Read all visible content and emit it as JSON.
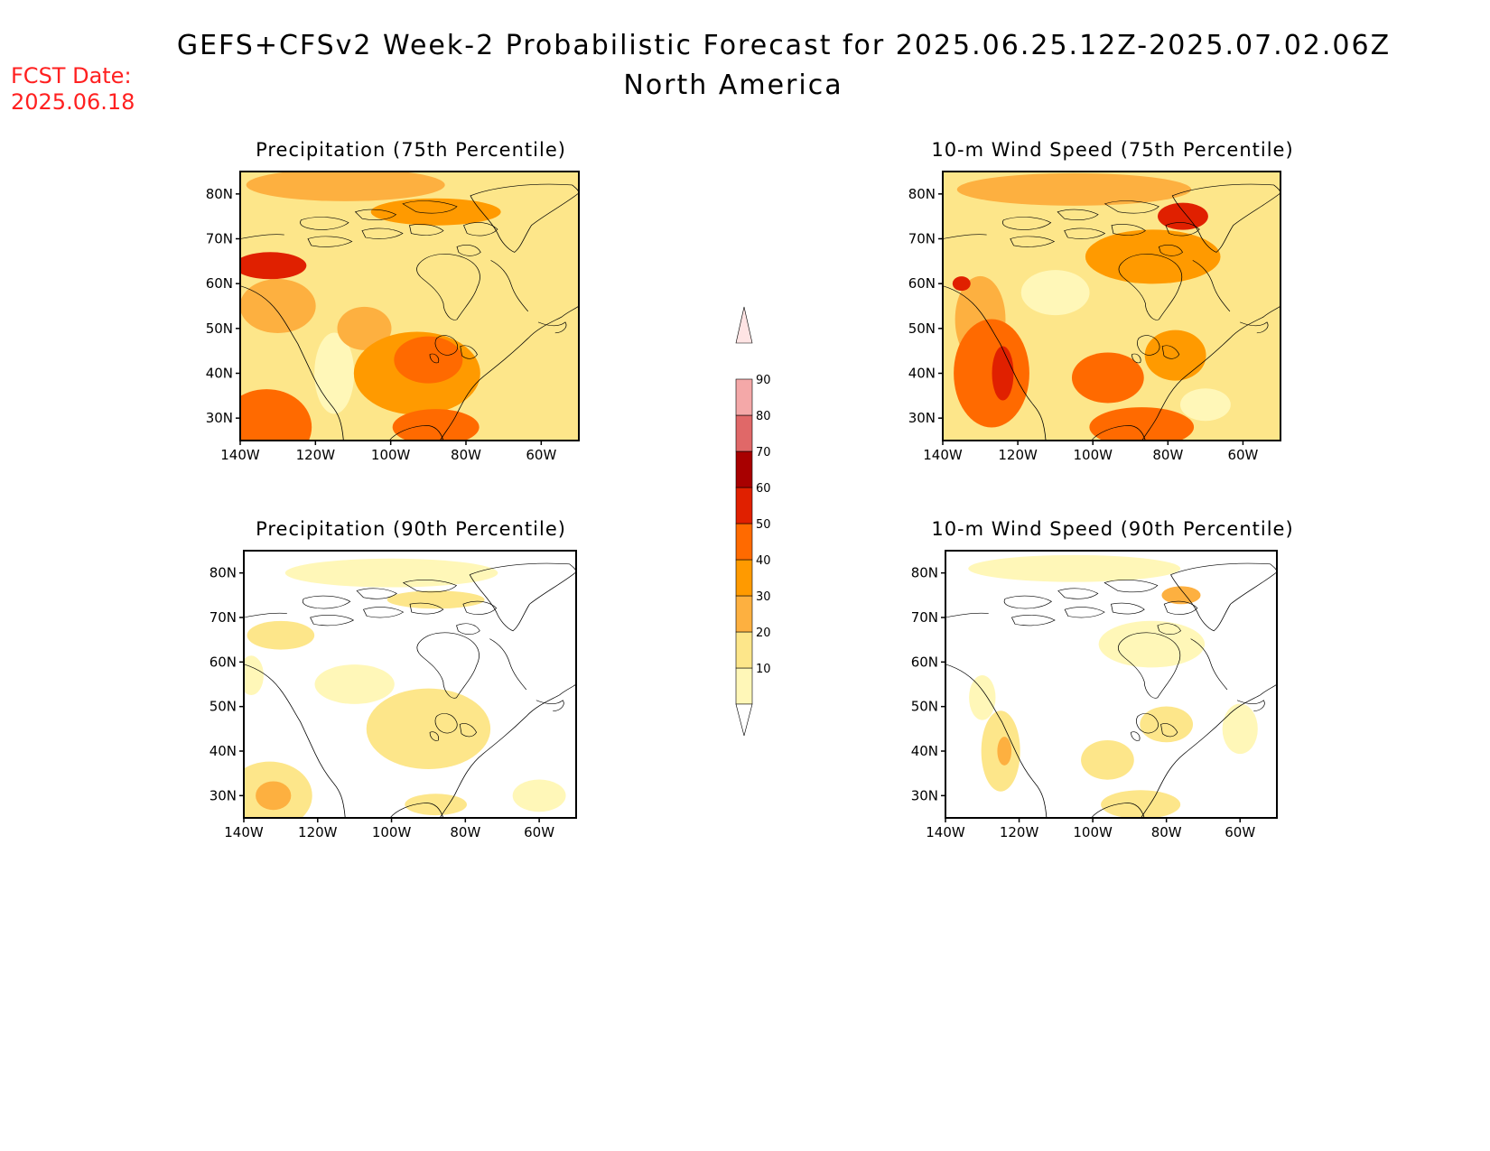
{
  "figure": {
    "title": "GEFS+CFSv2 Week-2 Probabilistic Forecast for 2025.06.25.12Z-2025.07.02.06Z",
    "region": "North America",
    "fcst_date_label": "FCST Date:",
    "fcst_date_value": "2025.06.18",
    "lat_ticks": [
      "80N",
      "70N",
      "60N",
      "50N",
      "40N",
      "30N"
    ],
    "lon_ticks": [
      "140W",
      "120W",
      "100W",
      "80W",
      "60W"
    ]
  },
  "colorbar": {
    "levels": [
      "10",
      "20",
      "30",
      "40",
      "50",
      "60",
      "70",
      "80",
      "90"
    ],
    "colors": [
      "#fff7b8",
      "#fde68a",
      "#fdb040",
      "#ff9a00",
      "#ff6a00",
      "#e02000",
      "#a80000",
      "#e06868",
      "#f4a8a8",
      "#ffe4e4"
    ]
  },
  "panels": [
    {
      "title": "Precipitation (75th Percentile)",
      "background_level": 1,
      "blobs": [
        {
          "lon": -93,
          "lat": 40,
          "rx": 70,
          "ry": 46,
          "level": 3
        },
        {
          "lon": -90,
          "lat": 43,
          "rx": 38,
          "ry": 26,
          "level": 4
        },
        {
          "lon": -133,
          "lat": 28,
          "rx": 50,
          "ry": 42,
          "level": 4
        },
        {
          "lon": -132,
          "lat": 64,
          "rx": 40,
          "ry": 15,
          "level": 5
        },
        {
          "lon": -88,
          "lat": 28,
          "rx": 48,
          "ry": 20,
          "level": 4
        },
        {
          "lon": -88,
          "lat": 76,
          "rx": 72,
          "ry": 15,
          "level": 3
        },
        {
          "lon": -130,
          "lat": 55,
          "rx": 42,
          "ry": 30,
          "level": 2
        },
        {
          "lon": -115,
          "lat": 40,
          "rx": 22,
          "ry": 45,
          "level": 0
        },
        {
          "lon": -70,
          "lat": 35,
          "rx": 55,
          "ry": 35,
          "level": 1
        },
        {
          "lon": -112,
          "lat": 82,
          "rx": 110,
          "ry": 18,
          "level": 2
        },
        {
          "lon": -107,
          "lat": 50,
          "rx": 30,
          "ry": 24,
          "level": 2
        }
      ]
    },
    {
      "title": "10-m Wind Speed (75th Percentile)",
      "background_level": 1,
      "blobs": [
        {
          "lon": -127,
          "lat": 40,
          "rx": 42,
          "ry": 60,
          "level": 4
        },
        {
          "lon": -124,
          "lat": 40,
          "rx": 12,
          "ry": 30,
          "level": 5
        },
        {
          "lon": -96,
          "lat": 39,
          "rx": 40,
          "ry": 28,
          "level": 4
        },
        {
          "lon": -87,
          "lat": 28,
          "rx": 58,
          "ry": 22,
          "level": 4
        },
        {
          "lon": -84,
          "lat": 66,
          "rx": 75,
          "ry": 30,
          "level": 3
        },
        {
          "lon": -76,
          "lat": 75,
          "rx": 28,
          "ry": 15,
          "level": 5
        },
        {
          "lon": -105,
          "lat": 81,
          "rx": 130,
          "ry": 18,
          "level": 2
        },
        {
          "lon": -130,
          "lat": 52,
          "rx": 28,
          "ry": 48,
          "level": 2
        },
        {
          "lon": -78,
          "lat": 44,
          "rx": 34,
          "ry": 28,
          "level": 3
        },
        {
          "lon": -110,
          "lat": 58,
          "rx": 38,
          "ry": 25,
          "level": 0
        },
        {
          "lon": -70,
          "lat": 33,
          "rx": 28,
          "ry": 18,
          "level": 0
        },
        {
          "lon": -135,
          "lat": 60,
          "rx": 10,
          "ry": 8,
          "level": 5
        }
      ]
    },
    {
      "title": "Precipitation (90th Percentile)",
      "background_level": -1,
      "blobs": [
        {
          "lon": -133,
          "lat": 30,
          "rx": 48,
          "ry": 38,
          "level": 1
        },
        {
          "lon": -132,
          "lat": 30,
          "rx": 20,
          "ry": 16,
          "level": 2
        },
        {
          "lon": -90,
          "lat": 45,
          "rx": 70,
          "ry": 45,
          "level": 1
        },
        {
          "lon": -130,
          "lat": 66,
          "rx": 38,
          "ry": 16,
          "level": 1
        },
        {
          "lon": -110,
          "lat": 55,
          "rx": 45,
          "ry": 22,
          "level": 0
        },
        {
          "lon": -100,
          "lat": 80,
          "rx": 120,
          "ry": 16,
          "level": 0
        },
        {
          "lon": -88,
          "lat": 74,
          "rx": 55,
          "ry": 10,
          "level": 1
        },
        {
          "lon": -60,
          "lat": 30,
          "rx": 30,
          "ry": 18,
          "level": 0
        },
        {
          "lon": -138,
          "lat": 57,
          "rx": 14,
          "ry": 22,
          "level": 0
        },
        {
          "lon": -88,
          "lat": 28,
          "rx": 35,
          "ry": 12,
          "level": 1
        }
      ]
    },
    {
      "title": "10-m Wind Speed (90th Percentile)",
      "background_level": -1,
      "blobs": [
        {
          "lon": -125,
          "lat": 40,
          "rx": 22,
          "ry": 45,
          "level": 1
        },
        {
          "lon": -124,
          "lat": 40,
          "rx": 8,
          "ry": 16,
          "level": 2
        },
        {
          "lon": -87,
          "lat": 28,
          "rx": 45,
          "ry": 16,
          "level": 1
        },
        {
          "lon": -84,
          "lat": 64,
          "rx": 60,
          "ry": 26,
          "level": 0
        },
        {
          "lon": -76,
          "lat": 75,
          "rx": 22,
          "ry": 10,
          "level": 2
        },
        {
          "lon": -105,
          "lat": 81,
          "rx": 120,
          "ry": 15,
          "level": 0
        },
        {
          "lon": -96,
          "lat": 38,
          "rx": 30,
          "ry": 22,
          "level": 1
        },
        {
          "lon": -80,
          "lat": 46,
          "rx": 30,
          "ry": 20,
          "level": 1
        },
        {
          "lon": -60,
          "lat": 45,
          "rx": 20,
          "ry": 28,
          "level": 0
        },
        {
          "lon": -130,
          "lat": 52,
          "rx": 15,
          "ry": 25,
          "level": 0
        }
      ]
    }
  ]
}
